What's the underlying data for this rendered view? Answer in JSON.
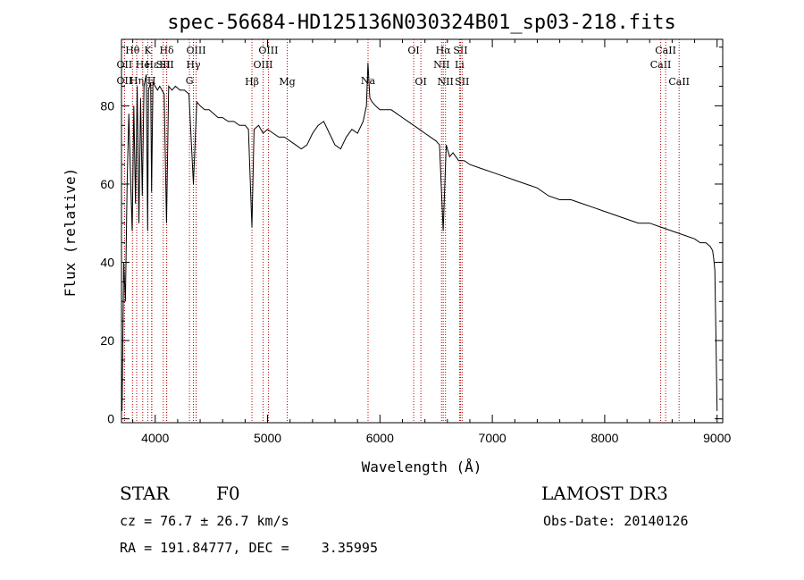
{
  "chart_data": {
    "type": "line",
    "title": "spec-56684-HD125136N030324B01_sp03-218.fits",
    "xlabel": "Wavelength (Å)",
    "ylabel": "Flux (relative)",
    "xlim": [
      3700,
      9050
    ],
    "ylim": [
      -1,
      97
    ],
    "xticks": [
      4000,
      5000,
      6000,
      7000,
      8000,
      9000
    ],
    "yticks": [
      0,
      20,
      40,
      60,
      80
    ],
    "grid": false,
    "series": [
      {
        "x": [
          3705,
          3720,
          3735,
          3750,
          3765,
          3780,
          3795,
          3810,
          3825,
          3840,
          3855,
          3870,
          3885,
          3900,
          3920,
          3933,
          3940,
          3960,
          3968,
          3980,
          4000,
          4020,
          4040,
          4060,
          4080,
          4101,
          4120,
          4150,
          4180,
          4220,
          4260,
          4300,
          4340,
          4370,
          4400,
          4440,
          4480,
          4520,
          4560,
          4600,
          4650,
          4700,
          4750,
          4800,
          4830,
          4861,
          4880,
          4920,
          4960,
          5000,
          5050,
          5100,
          5150,
          5200,
          5250,
          5300,
          5350,
          5400,
          5450,
          5500,
          5550,
          5600,
          5650,
          5700,
          5750,
          5800,
          5850,
          5880,
          5893,
          5910,
          5930,
          5960,
          6000,
          6050,
          6100,
          6150,
          6200,
          6250,
          6300,
          6350,
          6400,
          6450,
          6500,
          6530,
          6563,
          6590,
          6620,
          6650,
          6700,
          6750,
          6800,
          6900,
          7000,
          7100,
          7200,
          7300,
          7400,
          7500,
          7600,
          7700,
          7800,
          7900,
          8000,
          8100,
          8200,
          8300,
          8400,
          8500,
          8600,
          8700,
          8800,
          8850,
          8900,
          8940,
          8960,
          8970,
          8980,
          8990,
          9000
        ],
        "y": [
          2,
          40,
          30,
          60,
          78,
          62,
          48,
          80,
          55,
          85,
          50,
          82,
          57,
          85,
          88,
          48,
          84,
          86,
          58,
          86,
          85,
          84,
          85,
          84,
          83,
          50,
          85,
          84,
          85,
          84,
          84,
          83,
          60,
          81,
          80,
          79,
          79,
          78,
          77,
          77,
          76,
          76,
          75,
          75,
          74,
          49,
          74,
          75,
          73,
          74,
          73,
          72,
          72,
          71,
          70,
          69,
          70,
          73,
          75,
          76,
          73,
          70,
          69,
          72,
          74,
          73,
          76,
          80,
          91,
          82,
          81,
          80,
          79,
          79,
          79,
          78,
          77,
          76,
          75,
          74,
          73,
          72,
          71,
          70,
          48,
          70,
          67,
          68,
          66,
          66,
          65,
          64,
          63,
          62,
          61,
          60,
          59,
          57,
          56,
          56,
          55,
          54,
          53,
          52,
          51,
          50,
          50,
          49,
          48,
          47,
          46,
          45,
          45,
          44,
          43,
          41,
          38,
          20,
          2
        ]
      }
    ],
    "line_markers": [
      {
        "label": "OII",
        "w": 3727,
        "row": 2
      },
      {
        "label": "OII",
        "w": 3727,
        "row": 3
      },
      {
        "label": "Hθ",
        "w": 3798,
        "row": 1
      },
      {
        "label": "Hη",
        "w": 3835,
        "row": 3
      },
      {
        "label": "He",
        "w": 3889,
        "row": 2
      },
      {
        "label": "K",
        "w": 3934,
        "row": 1
      },
      {
        "label": "H",
        "w": 3968,
        "row": 3
      },
      {
        "label": "Hε",
        "w": 3970,
        "row": 2
      },
      {
        "label": "SII",
        "w": 4072,
        "row": 2
      },
      {
        "label": "Hδ",
        "w": 4102,
        "row": 1
      },
      {
        "label": "SII",
        "w": 4102,
        "row": 2
      },
      {
        "label": "G",
        "w": 4305,
        "row": 3
      },
      {
        "label": "OIII",
        "w": 4364,
        "row": 1
      },
      {
        "label": "Hγ",
        "w": 4340,
        "row": 2
      },
      {
        "label": "Hβ",
        "w": 4861,
        "row": 4
      },
      {
        "label": "OIII",
        "w": 4960,
        "row": 2
      },
      {
        "label": "OIII",
        "w": 5007,
        "row": 1
      },
      {
        "label": "Mg",
        "w": 5175,
        "row": 4
      },
      {
        "label": "Na",
        "w": 5894,
        "row": 3
      },
      {
        "label": "OI",
        "w": 6300,
        "row": 1
      },
      {
        "label": "OI",
        "w": 6364,
        "row": 4
      },
      {
        "label": "Hα",
        "w": 6563,
        "row": 1
      },
      {
        "label": "NII",
        "w": 6548,
        "row": 2
      },
      {
        "label": "NII",
        "w": 6583,
        "row": 4
      },
      {
        "label": "SII",
        "w": 6717,
        "row": 1
      },
      {
        "label": "Li",
        "w": 6708,
        "row": 2
      },
      {
        "label": "SII",
        "w": 6731,
        "row": 4
      },
      {
        "label": "CaII",
        "w": 8498,
        "row": 2
      },
      {
        "label": "CaII",
        "w": 8542,
        "row": 1
      },
      {
        "label": "CaII",
        "w": 8662,
        "row": 4
      }
    ]
  },
  "info": {
    "object_class": "STAR",
    "subclass": "F0",
    "survey": "LAMOST DR3",
    "cz": "cz = 76.7 ± 26.7 km/s",
    "obs_date": "Obs-Date: 20140126",
    "coords": "RA = 191.84777, DEC =    3.35995"
  }
}
